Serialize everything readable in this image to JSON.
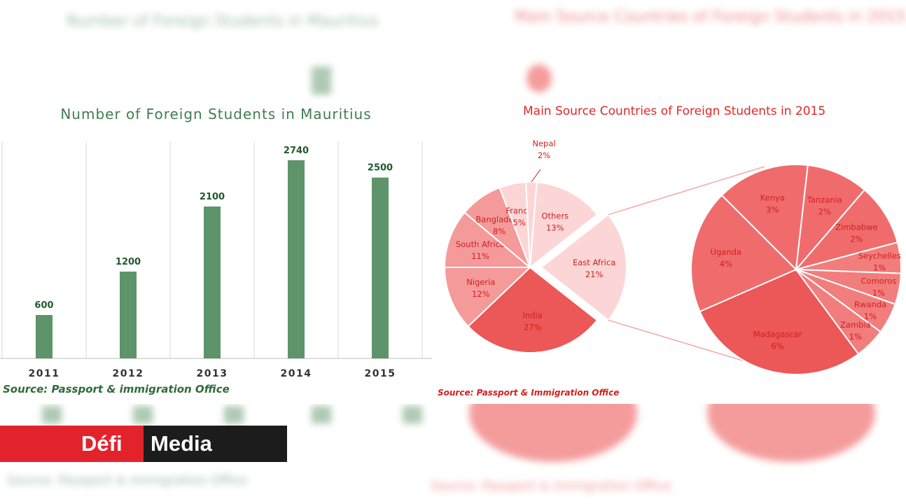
{
  "watermark": {
    "left_title": "Number of Foreign Students in Mauritius",
    "right_title": "Main Source Countries of Foreign Students in 2015",
    "left_source": "Source: Passport & immigration Office",
    "right_source": "Source: Passport & Immigration Office"
  },
  "logo": {
    "part1": "Défi",
    "part2": "Media",
    "red": "#e3232c",
    "dark": "#1c1c1c"
  },
  "chart_data": [
    {
      "type": "bar",
      "title": "Number of Foreign Students in Mauritius",
      "categories": [
        "2011",
        "2012",
        "2013",
        "2014",
        "2015"
      ],
      "values": [
        600,
        1200,
        2100,
        2740,
        2500
      ],
      "xlabel": "",
      "ylabel": "",
      "ylim": [
        0,
        3000
      ],
      "color": "#5e946a",
      "source": "Source:  Passport  & immigration Office"
    },
    {
      "type": "pie",
      "title": "Main Source Countries of  Foreign Students in 2015",
      "slices": [
        {
          "label": "India",
          "value": 27
        },
        {
          "label": "Nigeria",
          "value": 12
        },
        {
          "label": "South Africa",
          "value": 11
        },
        {
          "label": "Bangladesh",
          "value": 8
        },
        {
          "label": "France",
          "value": 5
        },
        {
          "label": "Nepal",
          "value": 2
        },
        {
          "label": "Others",
          "value": 13
        },
        {
          "label": "East Africa",
          "value": 21
        }
      ],
      "breakdown_of": "East Africa",
      "breakdown": [
        {
          "label": "Madagascar",
          "value": 6
        },
        {
          "label": "Uganda",
          "value": 4
        },
        {
          "label": "Kenya",
          "value": 3
        },
        {
          "label": "Tanzania",
          "value": 2
        },
        {
          "label": "Zimbabwe",
          "value": 2
        },
        {
          "label": "Seychelles",
          "value": 1
        },
        {
          "label": "Comoros",
          "value": 1
        },
        {
          "label": "Rwanda",
          "value": 1
        },
        {
          "label": "Zambia",
          "value": 1
        }
      ],
      "colors": {
        "dark": "#f06c6c",
        "medium": "#f59a9a",
        "light": "#fcd6d6",
        "text": "#d11f1f",
        "strong": "#ec5757"
      },
      "source": "Source:  Passport & Immigration Office"
    }
  ]
}
